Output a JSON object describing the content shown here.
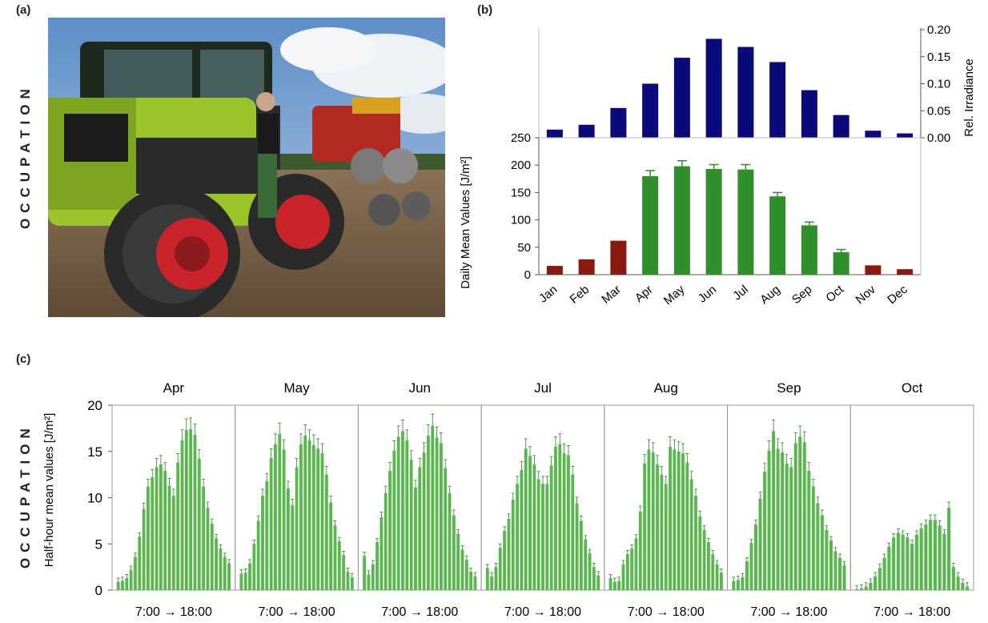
{
  "labels": {
    "panel_a": "(a)",
    "panel_b": "(b)",
    "panel_c": "(c)",
    "side_text": "OCCUPATION"
  },
  "colors": {
    "navy": "#0a0a7a",
    "green": "#2f8f2a",
    "darkred": "#8a1a10",
    "bar_green_light": "#58b84e"
  },
  "chart_data": [
    {
      "type": "bar",
      "panel": "(b) top",
      "categories": [
        "Jan",
        "Feb",
        "Mar",
        "Apr",
        "May",
        "Jun",
        "Jul",
        "Aug",
        "Sep",
        "Oct",
        "Nov",
        "Dec"
      ],
      "values": [
        0.015,
        0.024,
        0.055,
        0.1,
        0.148,
        0.183,
        0.168,
        0.14,
        0.088,
        0.042,
        0.013,
        0.008
      ],
      "ylabel": "Rel. Irradiance",
      "ylim": [
        0,
        0.2
      ],
      "yticks": [
        "0.00",
        "0.05",
        "0.10",
        "0.15",
        "0.20"
      ],
      "axis_side": "right",
      "color": "#0a0a7a"
    },
    {
      "type": "bar",
      "panel": "(b) bottom",
      "categories": [
        "Jan",
        "Feb",
        "Mar",
        "Apr",
        "May",
        "Jun",
        "Jul",
        "Aug",
        "Sep",
        "Oct",
        "Nov",
        "Dec"
      ],
      "values": [
        16,
        28,
        62,
        180,
        198,
        193,
        192,
        143,
        90,
        41,
        17,
        10
      ],
      "errors": [
        0,
        0,
        0,
        10,
        10,
        8,
        9,
        7,
        6,
        5,
        0,
        0
      ],
      "bar_colors": [
        "#8a1a10",
        "#8a1a10",
        "#8a1a10",
        "#2f8f2a",
        "#2f8f2a",
        "#2f8f2a",
        "#2f8f2a",
        "#2f8f2a",
        "#2f8f2a",
        "#2f8f2a",
        "#8a1a10",
        "#8a1a10"
      ],
      "ylabel": "Daily Mean Values [J/m²]",
      "ylim": [
        0,
        250
      ],
      "yticks": [
        "0",
        "50",
        "100",
        "150",
        "200",
        "250"
      ]
    },
    {
      "type": "bar",
      "panel": "(c)",
      "ylabel": "Half-hour mean values [J/m²]",
      "ylim": [
        0,
        20
      ],
      "yticks": [
        "0",
        "5",
        "10",
        "15",
        "20"
      ],
      "xtick_label": "7:00  →  18:00",
      "color": "#58b84e",
      "panels": [
        {
          "name": "Apr",
          "values": [
            0.9,
            1.0,
            1.3,
            2.2,
            3.6,
            5.8,
            8.8,
            11.2,
            12.2,
            13.3,
            13.6,
            12.9,
            11.3,
            10.2,
            13.8,
            16.2,
            17.3,
            17.4,
            16.8,
            14.2,
            11.2,
            8.9,
            7.2,
            5.6,
            4.5,
            3.6,
            2.9
          ]
        },
        {
          "name": "May",
          "values": [
            1.8,
            1.9,
            2.9,
            5.0,
            7.5,
            10.2,
            11.8,
            14.3,
            15.8,
            16.9,
            15.2,
            11.0,
            9.2,
            13.3,
            15.8,
            16.7,
            16.2,
            15.7,
            15.3,
            14.8,
            12.5,
            9.5,
            7.0,
            5.3,
            3.8,
            2.0,
            1.4
          ]
        },
        {
          "name": "Jun",
          "values": [
            3.7,
            1.7,
            2.8,
            5.2,
            7.9,
            10.5,
            12.9,
            15.1,
            16.6,
            17.2,
            16.2,
            14.1,
            11.1,
            13.3,
            14.9,
            16.7,
            17.8,
            16.5,
            15.9,
            13.2,
            10.5,
            8.1,
            6.1,
            4.4,
            3.3,
            2.0,
            1.5
          ]
        },
        {
          "name": "Jul",
          "values": [
            2.4,
            1.5,
            2.5,
            4.6,
            6.4,
            7.7,
            9.8,
            11.5,
            13.0,
            15.3,
            14.5,
            13.6,
            12.0,
            11.5,
            11.5,
            13.5,
            15.5,
            15.8,
            14.8,
            14.6,
            12.5,
            9.4,
            7.5,
            5.5,
            4.0,
            2.5,
            1.6
          ]
        },
        {
          "name": "Aug",
          "values": [
            1.3,
            0.9,
            1.0,
            2.8,
            3.9,
            4.5,
            5.6,
            8.5,
            13.7,
            15.2,
            14.9,
            13.6,
            12.5,
            11.5,
            15.5,
            15.2,
            15.0,
            14.8,
            13.8,
            12.0,
            10.2,
            8.0,
            6.5,
            5.2,
            3.9,
            2.8,
            1.9
          ]
        },
        {
          "name": "Sep",
          "values": [
            1.0,
            1.1,
            1.4,
            3.1,
            5.1,
            7.1,
            9.9,
            12.8,
            15.1,
            17.2,
            15.3,
            14.9,
            13.7,
            13.3,
            15.9,
            16.6,
            16.0,
            12.9,
            11.2,
            9.4,
            8.1,
            6.5,
            5.4,
            4.2,
            3.5,
            2.7
          ]
        },
        {
          "name": "Oct",
          "values": [
            0.1,
            0.2,
            0.4,
            0.8,
            1.5,
            2.4,
            3.5,
            4.7,
            5.7,
            6.2,
            6.0,
            5.7,
            5.0,
            6.0,
            6.7,
            7.1,
            7.6,
            7.6,
            7.0,
            6.1,
            8.9,
            2.5,
            1.5,
            0.8,
            0.4
          ]
        }
      ]
    }
  ]
}
